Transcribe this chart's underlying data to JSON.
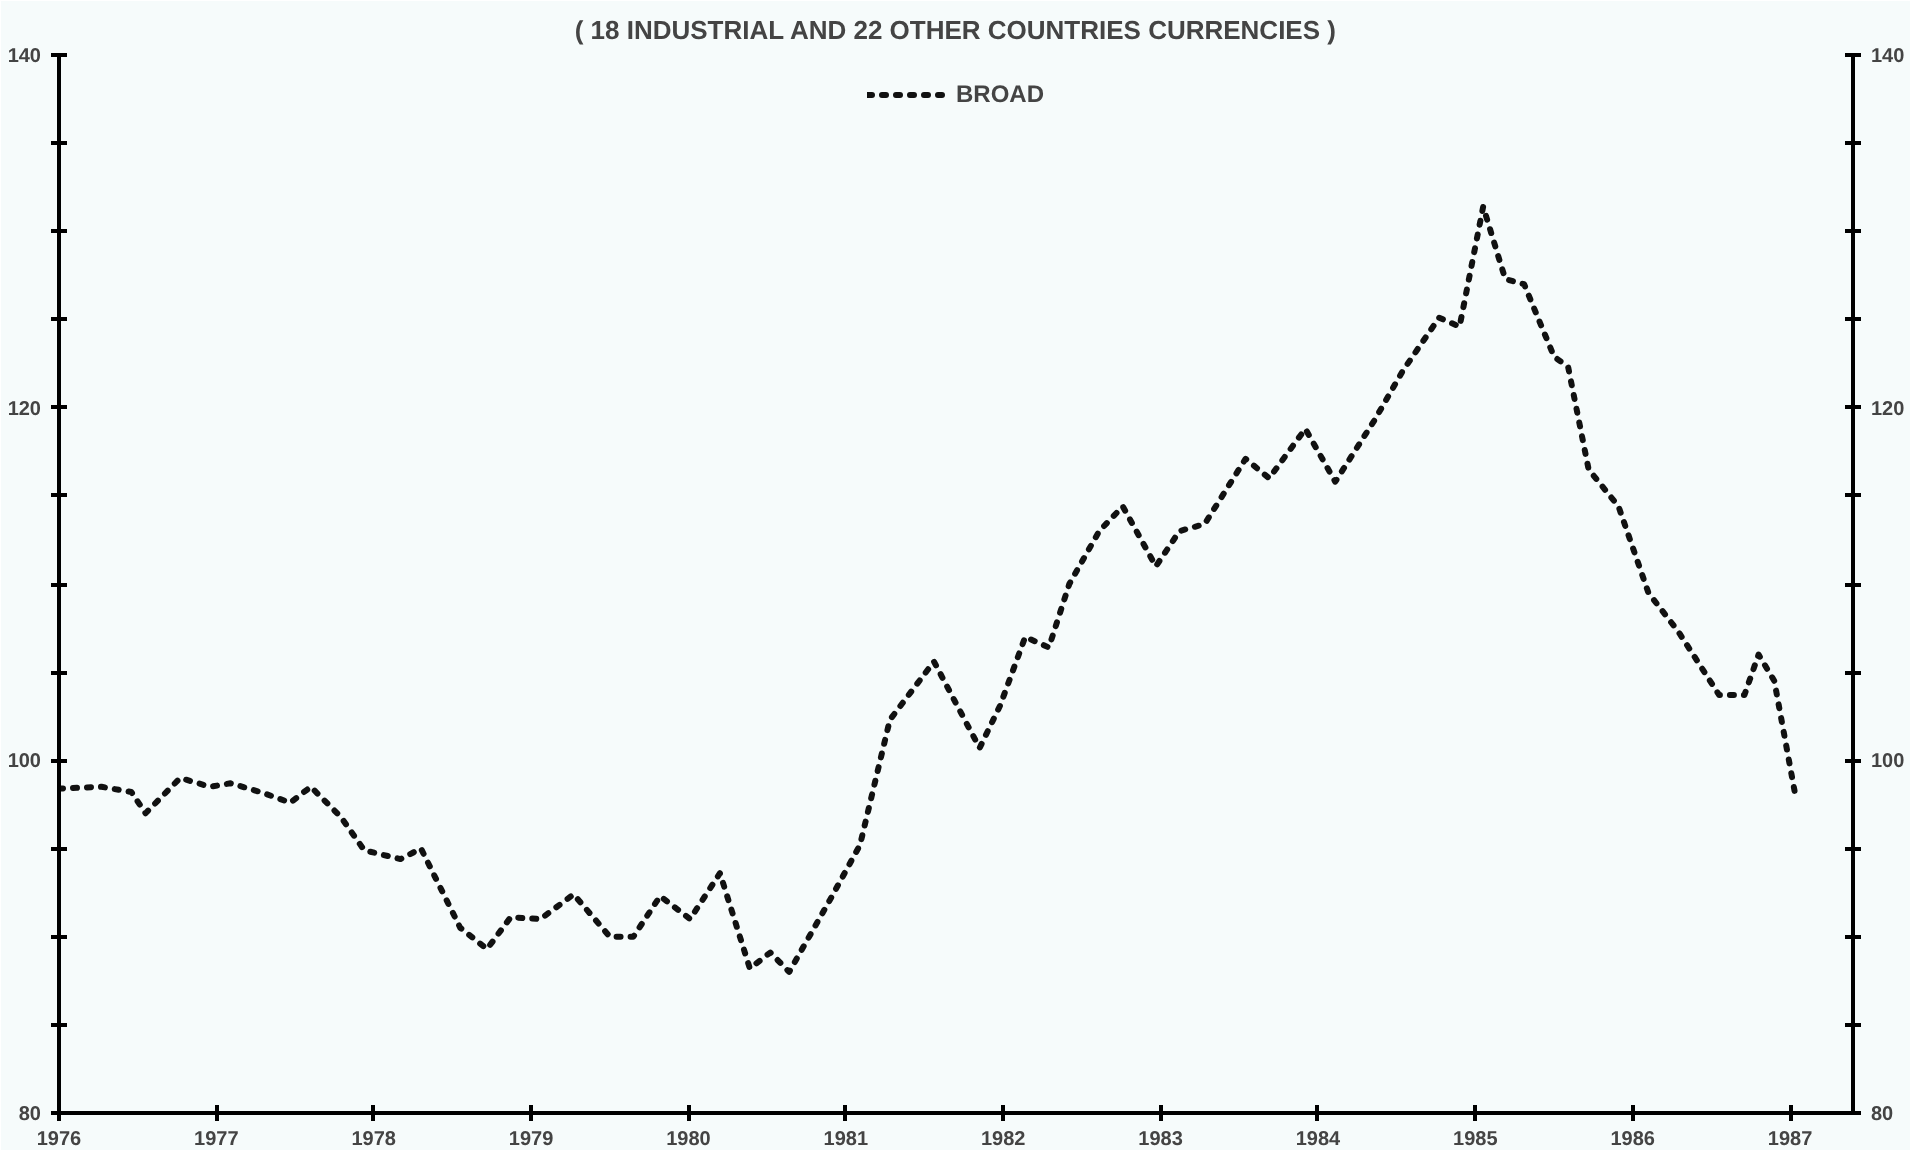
{
  "chart_data": {
    "type": "line",
    "title": "( 18 INDUSTRIAL AND 22 OTHER COUNTRIES CURRENCIES )",
    "xlim": [
      1976,
      1987.4
    ],
    "xticks": [
      1976,
      1977,
      1978,
      1979,
      1980,
      1981,
      1982,
      1983,
      1984,
      1985,
      1986,
      1987
    ],
    "ylim": [
      80,
      140
    ],
    "yticks": [
      80,
      {
        "value": 85,
        "label": null
      },
      {
        "value": 90,
        "label": null
      },
      {
        "value": 95,
        "label": null
      },
      100,
      {
        "value": 105,
        "label": null
      },
      {
        "value": 110,
        "label": null
      },
      {
        "value": 115,
        "label": null
      },
      120,
      {
        "value": 125,
        "label": null
      },
      {
        "value": 130,
        "label": null
      },
      {
        "value": 135,
        "label": null
      },
      140
    ],
    "y2lim": [
      80,
      140
    ],
    "y2ticks": [
      80,
      {
        "value": 85,
        "label": null
      },
      {
        "value": 90,
        "label": null
      },
      {
        "value": 95,
        "label": null
      },
      100,
      {
        "value": 105,
        "label": null
      },
      {
        "value": 110,
        "label": null
      },
      {
        "value": 115,
        "label": null
      },
      120,
      {
        "value": 125,
        "label": null
      },
      {
        "value": 130,
        "label": null
      },
      {
        "value": 135,
        "label": null
      },
      140
    ],
    "grid": false,
    "legend": "top",
    "line_style": "dotted",
    "series": [
      {
        "name": "BROAD",
        "color": "#111111",
        "x": [
          1976.0,
          1976.27,
          1976.46,
          1976.55,
          1976.77,
          1976.96,
          1977.09,
          1977.28,
          1977.47,
          1977.6,
          1977.79,
          1977.94,
          1978.17,
          1978.3,
          1978.55,
          1978.72,
          1978.87,
          1979.06,
          1979.27,
          1979.5,
          1979.65,
          1979.82,
          1980.01,
          1980.2,
          1980.39,
          1980.52,
          1980.64,
          1980.9,
          1981.09,
          1981.28,
          1981.56,
          1981.69,
          1981.85,
          1981.98,
          1982.14,
          1982.29,
          1982.42,
          1982.61,
          1982.76,
          1982.97,
          1983.12,
          1983.28,
          1983.54,
          1983.69,
          1983.92,
          1984.11,
          1984.36,
          1984.54,
          1984.77,
          1984.9,
          1985.05,
          1985.19,
          1985.31,
          1985.5,
          1985.59,
          1985.72,
          1985.91,
          1986.1,
          1986.29,
          1986.55,
          1986.71,
          1986.8,
          1986.9,
          1987.03
        ],
        "values": [
          98.4,
          98.5,
          98.2,
          97.0,
          99.0,
          98.5,
          98.7,
          98.2,
          97.6,
          98.5,
          96.8,
          94.9,
          94.4,
          95.0,
          90.5,
          89.3,
          91.1,
          91.0,
          92.4,
          90.0,
          90.0,
          92.3,
          91.0,
          93.6,
          88.2,
          89.1,
          88.0,
          92.1,
          95.2,
          102.3,
          105.6,
          103.4,
          100.7,
          103.1,
          107.0,
          106.4,
          110.0,
          113.0,
          114.4,
          111.0,
          113.0,
          113.4,
          117.1,
          116.0,
          118.8,
          115.8,
          119.3,
          122.1,
          125.1,
          124.6,
          131.4,
          127.3,
          127.0,
          122.9,
          122.3,
          116.5,
          114.4,
          109.5,
          107.3,
          103.7,
          103.7,
          106.0,
          104.5,
          98.2
        ]
      }
    ]
  }
}
